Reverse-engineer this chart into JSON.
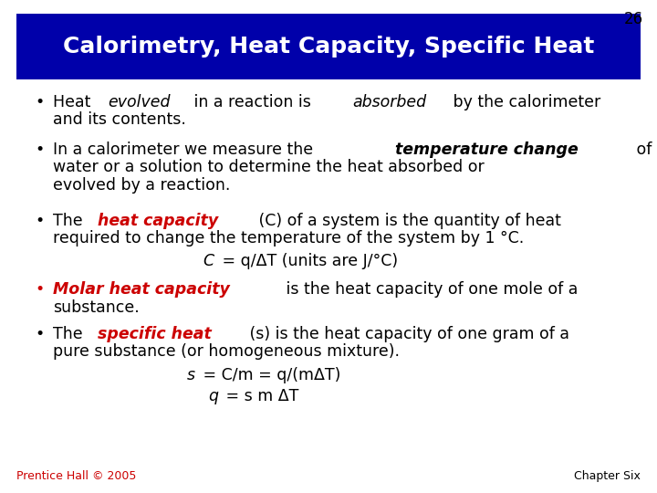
{
  "slide_number": "26",
  "title": "Calorimetry, Heat Capacity, Specific Heat",
  "title_bg_color": "#0000aa",
  "title_text_color": "#ffffff",
  "slide_bg_color": "#ffffff",
  "footer_left": "Prentice Hall © 2005",
  "footer_right": "Chapter Six",
  "footer_color": "#cc0000",
  "red_color": "#cc0000",
  "black": "#000000"
}
